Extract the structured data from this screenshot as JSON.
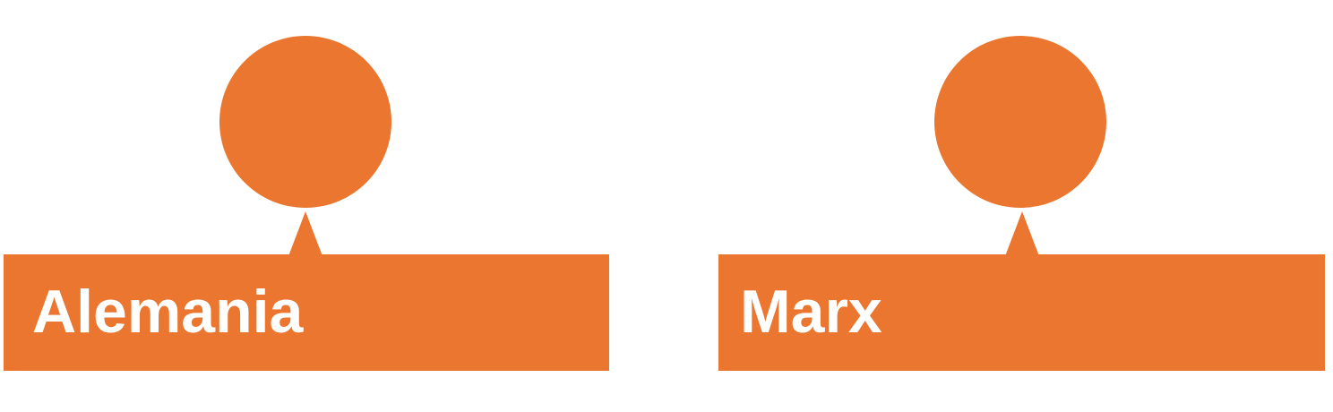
{
  "colors": {
    "accent": "#EA7630",
    "text": "#FFFFFF",
    "background": "#FFFFFF"
  },
  "nodes": [
    {
      "label": "Alemania",
      "icon": "circle-icon"
    },
    {
      "label": "Marx",
      "icon": "circle-icon"
    }
  ]
}
